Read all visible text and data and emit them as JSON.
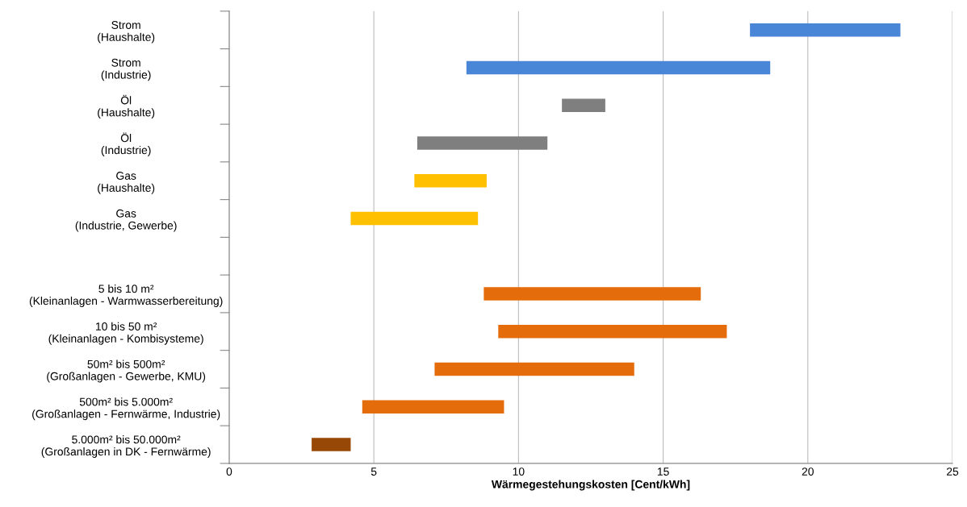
{
  "chart_data": {
    "type": "bar",
    "orientation": "horizontal",
    "xlabel": "Wärmegestehungskosten [Cent/kWh]",
    "categories": [
      "Strom\n(Haushalte)",
      "Strom\n(Industrie)",
      "Öl\n(Haushalte)",
      "Öl\n(Industrie)",
      "Gas\n(Haushalte)",
      "Gas\n(Industrie, Gewerbe)",
      null,
      "5 bis 10 m²\n(Kleinanlagen - Warmwasserbereitung)",
      "10 bis 50 m²\n(Kleinanlagen - Kombisysteme)",
      "50m² bis 500m²\n(Großanlagen - Gewerbe, KMU)",
      "500m² bis 5.000m²\n(Großanlagen - Fernwärme, Industrie)",
      "5.000m² bis 50.000m²\n(Großanlagen in DK - Fernwärme)"
    ],
    "base": [
      18,
      8.2,
      11.5,
      6.5,
      6.4,
      4.2,
      null,
      8.8,
      9.3,
      7.1,
      4.6,
      2.85
    ],
    "values": [
      5.2,
      10.5,
      1.5,
      4.5,
      2.5,
      4.4,
      null,
      7.5,
      7.9,
      6.9,
      4.9,
      1.35
    ],
    "colors": [
      "#4a86d8",
      "#4a86d8",
      "#7f7f7f",
      "#7f7f7f",
      "#ffc000",
      "#ffc000",
      null,
      "#e46c0a",
      "#e46c0a",
      "#e46c0a",
      "#e46c0a",
      "#974806"
    ],
    "xlim": [
      0,
      25
    ],
    "xticks": [
      0,
      5,
      10,
      15,
      20,
      25
    ],
    "grid": "x",
    "legend": false
  }
}
